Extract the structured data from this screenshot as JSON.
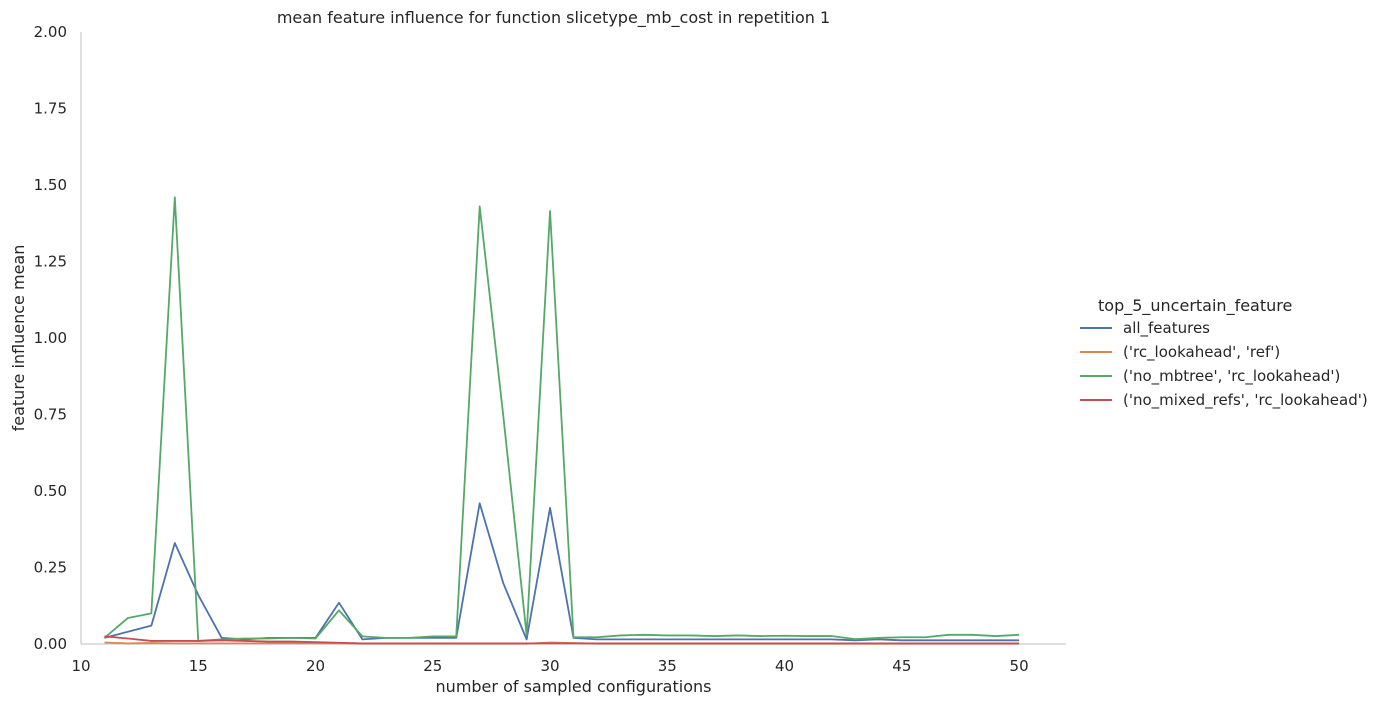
{
  "chart_data": {
    "type": "line",
    "title": "mean feature influence for function slicetype_mb_cost in repetition 1",
    "xlabel": "number of sampled configurations",
    "ylabel": "feature influence mean",
    "xlim": [
      10,
      52
    ],
    "ylim": [
      0,
      2.0
    ],
    "xticks": [
      10,
      15,
      20,
      25,
      30,
      35,
      40,
      45,
      50
    ],
    "xtick_labels": [
      "10",
      "15",
      "20",
      "25",
      "30",
      "35",
      "40",
      "45",
      "50"
    ],
    "yticks": [
      0,
      0.25,
      0.5,
      0.75,
      1.0,
      1.25,
      1.5,
      1.75,
      2.0
    ],
    "ytick_labels": [
      "0.00",
      "0.25",
      "0.50",
      "0.75",
      "1.00",
      "1.25",
      "1.50",
      "1.75",
      "2.00"
    ],
    "grid": false,
    "legend": {
      "title": "top_5_uncertain_feature",
      "placement": "right"
    },
    "x": [
      11,
      12,
      13,
      14,
      15,
      16,
      17,
      18,
      19,
      20,
      21,
      22,
      23,
      24,
      25,
      26,
      27,
      28,
      29,
      30,
      31,
      32,
      33,
      34,
      35,
      36,
      37,
      38,
      39,
      40,
      41,
      42,
      43,
      44,
      45,
      46,
      47,
      48,
      49,
      50
    ],
    "series": [
      {
        "name": "all_features",
        "color": "#4c72b0",
        "values": [
          0.02,
          0.04,
          0.06,
          0.33,
          0.16,
          0.02,
          0.015,
          0.02,
          0.02,
          0.02,
          0.135,
          0.015,
          0.02,
          0.02,
          0.02,
          0.02,
          0.46,
          0.2,
          0.015,
          0.445,
          0.02,
          0.015,
          0.015,
          0.015,
          0.015,
          0.015,
          0.015,
          0.015,
          0.015,
          0.015,
          0.015,
          0.015,
          0.012,
          0.015,
          0.012,
          0.012,
          0.012,
          0.012,
          0.012,
          0.012
        ]
      },
      {
        "name": "('rc_lookahead', 'ref')",
        "color": "#dd8452",
        "values": [
          0.005,
          0.002,
          0.003,
          0.002,
          0.002,
          0.002,
          0.002,
          0.002,
          0.002,
          0.002,
          0.002,
          0.001,
          0.001,
          0.001,
          0.001,
          0.001,
          0.001,
          0.001,
          0.001,
          0.005,
          0.003,
          0.001,
          0.001,
          0.001,
          0.001,
          0.001,
          0.001,
          0.001,
          0.001,
          0.001,
          0.001,
          0.001,
          0.001,
          0.001,
          0.001,
          0.001,
          0.001,
          0.001,
          0.001,
          0.001
        ]
      },
      {
        "name": "('no_mbtree', 'rc_lookahead')",
        "color": "#55a868",
        "values": [
          0.02,
          0.085,
          0.1,
          1.46,
          0.01,
          0.015,
          0.018,
          0.018,
          0.02,
          0.018,
          0.11,
          0.025,
          0.02,
          0.02,
          0.025,
          0.025,
          1.43,
          0.75,
          0.03,
          1.415,
          0.022,
          0.022,
          0.028,
          0.03,
          0.028,
          0.028,
          0.026,
          0.028,
          0.026,
          0.027,
          0.026,
          0.026,
          0.016,
          0.02,
          0.022,
          0.022,
          0.03,
          0.03,
          0.026,
          0.03
        ]
      },
      {
        "name": "('no_mixed_refs', 'rc_lookahead')",
        "color": "#c44e52",
        "values": [
          0.025,
          0.018,
          0.01,
          0.01,
          0.01,
          0.012,
          0.01,
          0.008,
          0.008,
          0.006,
          0.004,
          0.002,
          0.002,
          0.002,
          0.002,
          0.002,
          0.002,
          0.002,
          0.002,
          0.002,
          0.002,
          0.002,
          0.002,
          0.002,
          0.002,
          0.002,
          0.002,
          0.002,
          0.002,
          0.002,
          0.002,
          0.002,
          0.002,
          0.002,
          0.002,
          0.002,
          0.002,
          0.002,
          0.002,
          0.002
        ]
      }
    ]
  }
}
